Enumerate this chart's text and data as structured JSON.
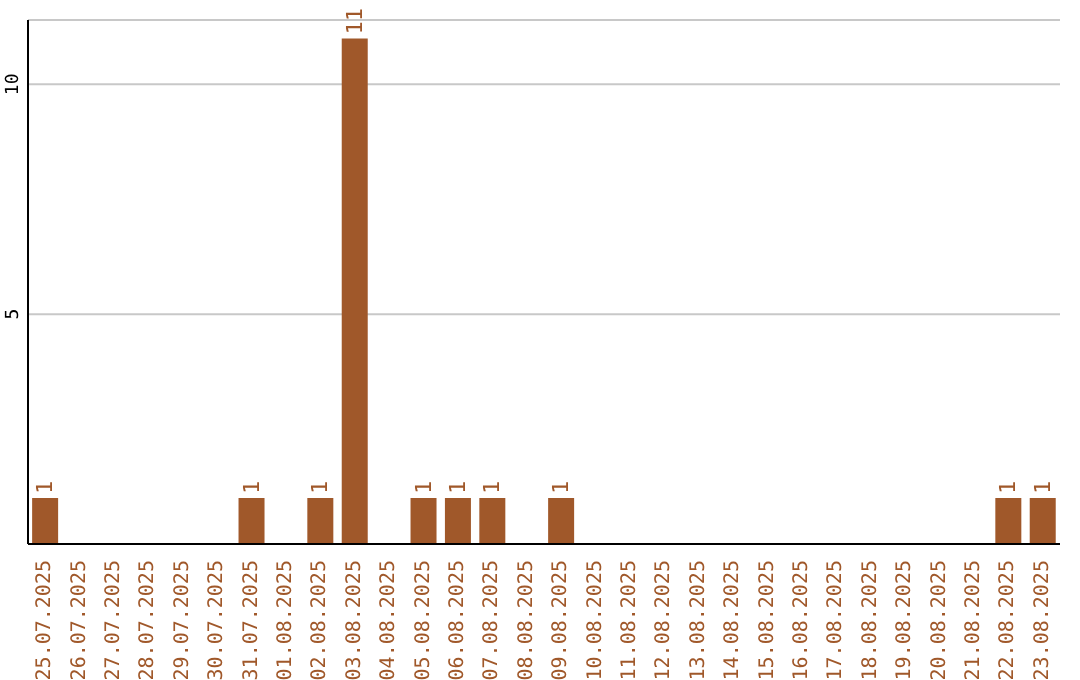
{
  "chart_data": {
    "type": "bar",
    "categories": [
      "25.07.2025",
      "26.07.2025",
      "27.07.2025",
      "28.07.2025",
      "29.07.2025",
      "30.07.2025",
      "31.07.2025",
      "01.08.2025",
      "02.08.2025",
      "03.08.2025",
      "04.08.2025",
      "05.08.2025",
      "06.08.2025",
      "07.08.2025",
      "08.08.2025",
      "09.08.2025",
      "10.08.2025",
      "11.08.2025",
      "12.08.2025",
      "13.08.2025",
      "14.08.2025",
      "15.08.2025",
      "16.08.2025",
      "17.08.2025",
      "18.08.2025",
      "19.08.2025",
      "20.08.2025",
      "21.08.2025",
      "22.08.2025",
      "23.08.2025"
    ],
    "values": [
      1,
      0,
      0,
      0,
      0,
      0,
      1,
      0,
      1,
      11,
      0,
      1,
      1,
      1,
      0,
      1,
      0,
      0,
      0,
      0,
      0,
      0,
      0,
      0,
      0,
      0,
      0,
      0,
      1,
      1
    ],
    "value_labels": [
      "1",
      null,
      null,
      null,
      null,
      null,
      "1",
      null,
      "1",
      "11",
      null,
      "1",
      "1",
      "1",
      null,
      "1",
      null,
      null,
      null,
      null,
      null,
      null,
      null,
      null,
      null,
      null,
      null,
      null,
      "1",
      "1"
    ],
    "color": "#a0582a",
    "ylim": [
      0,
      11.4
    ],
    "yticks": [
      5,
      10
    ],
    "grid": "y"
  }
}
